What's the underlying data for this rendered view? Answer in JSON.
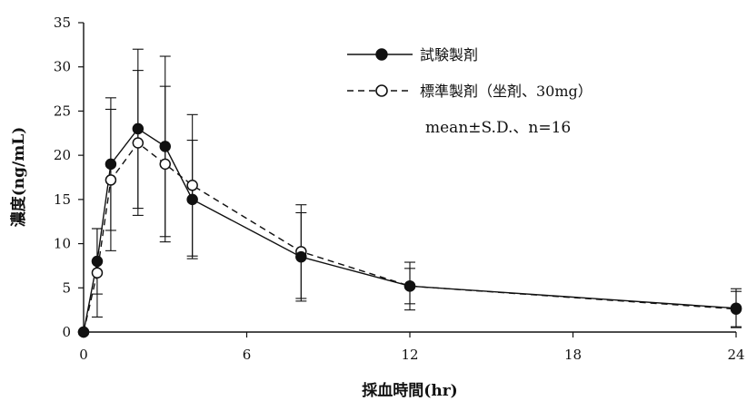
{
  "chart_data": {
    "type": "line",
    "xlabel": "採血時間(hr)",
    "ylabel": "濃度(ng/mL)",
    "xlim": [
      0,
      24
    ],
    "ylim": [
      0,
      35
    ],
    "xticks": [
      0,
      6,
      12,
      18,
      24
    ],
    "yticks": [
      0,
      5,
      10,
      15,
      20,
      25,
      30,
      35
    ],
    "grid": false,
    "legend_position": "top-right",
    "note": "mean±S.D.、n=16",
    "x": [
      0,
      0.5,
      1,
      2,
      3,
      4,
      8,
      12,
      24
    ],
    "series": [
      {
        "name": "試験製剤",
        "marker": "filled-circle",
        "line": "solid",
        "values": [
          0,
          8.0,
          19.0,
          23.0,
          21.0,
          15.0,
          8.5,
          5.2,
          2.7
        ],
        "sd": [
          0,
          3.7,
          7.5,
          9.0,
          10.2,
          6.7,
          5.0,
          2.7,
          2.2
        ]
      },
      {
        "name": "標準製剤（坐剤、30mg）",
        "marker": "open-circle",
        "line": "dashed",
        "values": [
          0,
          6.7,
          17.2,
          21.4,
          19.0,
          16.6,
          9.1,
          5.2,
          2.6
        ],
        "sd": [
          0,
          5.0,
          8.0,
          8.2,
          8.8,
          8.0,
          5.3,
          2.0,
          2.0
        ]
      }
    ],
    "colors": {
      "ink": "#111111",
      "open_fill": "#ffffff"
    }
  }
}
